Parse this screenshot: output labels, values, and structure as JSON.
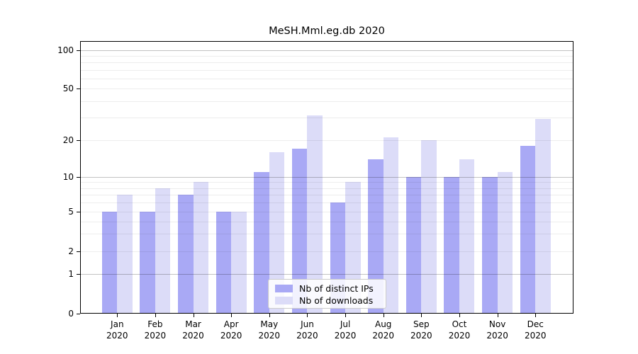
{
  "title": "MeSH.Mml.eg.db 2020",
  "legend": {
    "items": [
      {
        "label": "Nb of distinct IPs",
        "color": "#a9a9f5"
      },
      {
        "label": "Nb of downloads",
        "color": "#dcdcf8"
      }
    ]
  },
  "chart_data": {
    "type": "bar",
    "title": "MeSH.Mml.eg.db 2020",
    "categories": [
      "Jan 2020",
      "Feb 2020",
      "Mar 2020",
      "Apr 2020",
      "May 2020",
      "Jun 2020",
      "Jul 2020",
      "Aug 2020",
      "Sep 2020",
      "Oct 2020",
      "Nov 2020",
      "Dec 2020"
    ],
    "months": [
      "Jan",
      "Feb",
      "Mar",
      "Apr",
      "May",
      "Jun",
      "Jul",
      "Aug",
      "Sep",
      "Oct",
      "Nov",
      "Dec"
    ],
    "year": "2020",
    "series": [
      {
        "name": "Nb of distinct IPs",
        "color": "#a9a9f5",
        "values": [
          5,
          5,
          7,
          5,
          11,
          17,
          6,
          14,
          10,
          10,
          10,
          18
        ]
      },
      {
        "name": "Nb of downloads",
        "color": "#dcdcf8",
        "values": [
          7,
          8,
          9,
          5,
          16,
          31,
          9,
          21,
          20,
          14,
          11,
          29
        ]
      }
    ],
    "xlabel": "",
    "ylabel": "",
    "y_axis": {
      "scale": "log-like with 0 baseline",
      "tick_labels": [
        "100",
        "50",
        "20",
        "10",
        "5",
        "2",
        "1",
        "0"
      ],
      "tick_values": [
        100,
        50,
        20,
        10,
        5,
        2,
        1,
        0
      ],
      "major_gridlines": [
        1,
        10,
        100
      ],
      "minor_gridlines": [
        2,
        3,
        4,
        5,
        6,
        7,
        8,
        9,
        20,
        30,
        40,
        50,
        60,
        70,
        80,
        90
      ],
      "ylim_top_approx": 118
    },
    "grid": true,
    "legend_position": "lower center"
  }
}
